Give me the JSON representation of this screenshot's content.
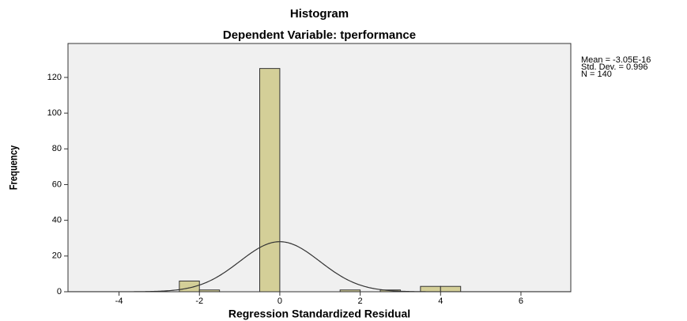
{
  "chart_data": {
    "type": "histogram",
    "title": "Histogram",
    "subtitle": "Dependent Variable: tperformance",
    "x_label": "Regression Standardized Residual",
    "y_label": "Frequency",
    "bins": [
      -2.5,
      -2,
      -1.5,
      -1,
      -0.5,
      0,
      0.5,
      1,
      1.5,
      2,
      2.5,
      3,
      3.5,
      4,
      4.5
    ],
    "counts": [
      6,
      1,
      0,
      0,
      125,
      0,
      0,
      0,
      1,
      0,
      1,
      0,
      3,
      3
    ],
    "color": "#d4cf98",
    "curve_color": "#333333",
    "stats": [
      {
        "value": -3.05e-16,
        "label": "Mean = -3.05E-16"
      },
      {
        "value": 0.996,
        "label": "Std. Dev. = 0.996"
      },
      {
        "value": 140,
        "label": "N = 140"
      }
    ],
    "xlim": [
      -5.27,
      7.24
    ],
    "ylim": [
      0,
      139
    ],
    "xticks": [
      -4,
      -2,
      0,
      2,
      4,
      6
    ],
    "yticks": [
      0,
      20,
      40,
      60,
      80,
      100,
      120
    ]
  }
}
